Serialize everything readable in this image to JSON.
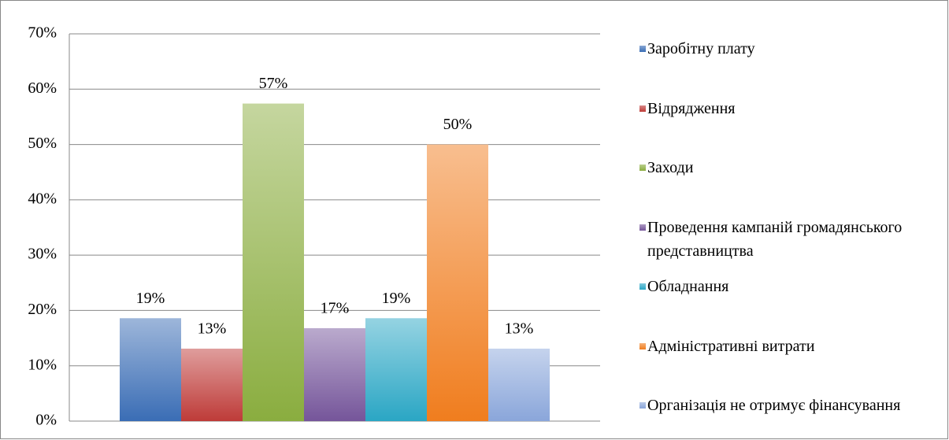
{
  "chart_data": {
    "type": "bar",
    "categories": [
      null
    ],
    "series": [
      {
        "name": "Заробітну плату",
        "color": "#3a6db5",
        "values": [
          18.6
        ],
        "value_labels": [
          "19%"
        ]
      },
      {
        "name": "Відрядження",
        "color": "#be3b38",
        "values": [
          13.1
        ],
        "value_labels": [
          "13%"
        ]
      },
      {
        "name": "Заходи",
        "color": "#8aad3f",
        "values": [
          57.4
        ],
        "value_labels": [
          "57%"
        ]
      },
      {
        "name": "Проведення кампаній громадянського представництва",
        "color": "#75559a",
        "values": [
          16.8
        ],
        "value_labels": [
          "17%"
        ]
      },
      {
        "name": "Обладнання",
        "color": "#2aa6c4",
        "values": [
          18.6
        ],
        "value_labels": [
          "19%"
        ]
      },
      {
        "name": "Адміністративні витрати",
        "color": "#f07d1e",
        "values": [
          50
        ],
        "value_labels": [
          "50%"
        ]
      },
      {
        "name": "Організація не отримує фінансування",
        "color": "#8aa6da",
        "values": [
          13.1
        ],
        "value_labels": [
          "13%"
        ]
      }
    ],
    "ylim": [
      0,
      70
    ],
    "yticks": [
      {
        "value": 0,
        "label": "0%"
      },
      {
        "value": 10,
        "label": "10%"
      },
      {
        "value": 20,
        "label": "20%"
      },
      {
        "value": 30,
        "label": "30%"
      },
      {
        "value": 40,
        "label": "40%"
      },
      {
        "value": 50,
        "label": "50%"
      },
      {
        "value": 60,
        "label": "60%"
      },
      {
        "value": 70,
        "label": "70%"
      }
    ],
    "grid": true,
    "legend": "right"
  }
}
